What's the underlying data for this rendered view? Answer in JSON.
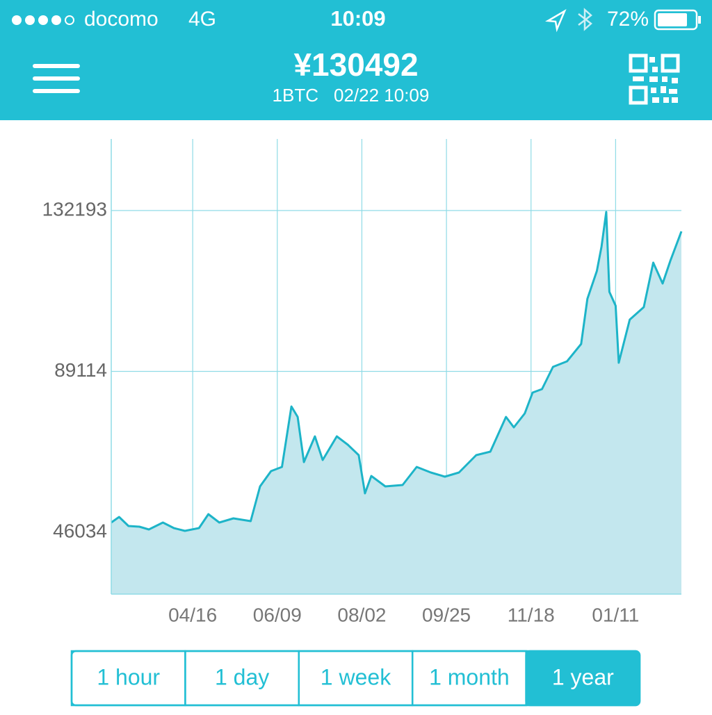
{
  "status_bar": {
    "carrier": "docomo",
    "network": "4G",
    "time": "10:09",
    "battery": "72%"
  },
  "header": {
    "price": "¥130492",
    "unit": "1BTC",
    "timestamp": "02/22 10:09"
  },
  "chart_data": {
    "type": "area",
    "color": "#1db4c8",
    "fill_color": "#c3e7ee",
    "grid": true,
    "x": [
      "02/23",
      "02/28",
      "03/06",
      "03/13",
      "03/19",
      "03/28",
      "04/04",
      "04/11",
      "04/20",
      "04/26",
      "05/03",
      "05/12",
      "05/23",
      "05/29",
      "06/05",
      "06/12",
      "06/18",
      "06/22",
      "06/26",
      "07/03",
      "07/08",
      "07/17",
      "07/24",
      "07/31",
      "08/04",
      "08/08",
      "08/17",
      "08/28",
      "09/06",
      "09/15",
      "09/24",
      "10/03",
      "10/14",
      "10/23",
      "11/02",
      "11/07",
      "11/14",
      "11/19",
      "11/25",
      "12/02",
      "12/11",
      "12/20",
      "12/24",
      "12/30",
      "01/02",
      "01/05",
      "01/07",
      "01/11",
      "01/13",
      "01/20",
      "01/29",
      "02/04",
      "02/10",
      "02/15",
      "02/22"
    ],
    "values": [
      48640,
      50128,
      47709,
      47523,
      46778,
      48640,
      47151,
      46406,
      47151,
      50873,
      48640,
      49756,
      49012,
      58317,
      62411,
      63528,
      79718,
      76925,
      64830,
      71716,
      65389,
      71716,
      69483,
      66692,
      56455,
      61108,
      58317,
      58689,
      63528,
      62039,
      60922,
      62039,
      66692,
      67622,
      76925,
      74134,
      77856,
      83439,
      84369,
      90325,
      91813,
      96466,
      108562,
      116006,
      122519,
      131824,
      110423,
      106701,
      91441,
      102980,
      106330,
      118243,
      112661,
      118801,
      126617
    ],
    "xlim": [
      "02/23",
      "02/22"
    ],
    "xticks": [
      "04/16",
      "06/09",
      "08/02",
      "09/25",
      "11/18",
      "01/11"
    ],
    "ylim": [
      29471,
      151361
    ],
    "yticks": [
      46034,
      89114,
      132193
    ]
  },
  "range_buttons": {
    "options": [
      "1 hour",
      "1 day",
      "1 week",
      "1 month",
      "1 year"
    ],
    "selected": "1 year"
  }
}
